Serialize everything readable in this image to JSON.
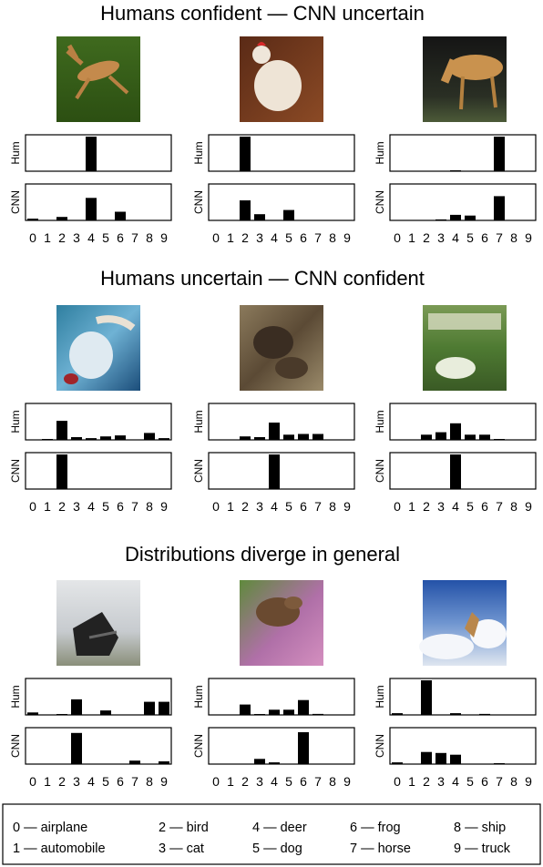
{
  "chart_data": {
    "type": "bar",
    "categories": [
      "0",
      "1",
      "2",
      "3",
      "4",
      "5",
      "6",
      "7",
      "8",
      "9"
    ],
    "ylabels": {
      "human": "Hum",
      "cnn": "CNN"
    },
    "ylim": [
      0,
      1
    ],
    "sections": [
      {
        "title": "Humans confident — CNN uncertain",
        "examples": [
          {
            "image": "deer-jumping-on-grass",
            "human": [
              0,
              0,
              0,
              0,
              1,
              0,
              0,
              0,
              0,
              0
            ],
            "cnn": [
              0.05,
              0,
              0.1,
              0,
              0.65,
              0,
              0.25,
              0,
              0,
              0
            ]
          },
          {
            "image": "white-rooster",
            "human": [
              0,
              0,
              1,
              0,
              0,
              0,
              0,
              0,
              0,
              0
            ],
            "cnn": [
              0,
              0,
              0.58,
              0.18,
              0,
              0.3,
              0,
              0,
              0,
              0
            ]
          },
          {
            "image": "tan-horse-in-dark",
            "human": [
              0,
              0,
              0,
              0,
              0.02,
              0,
              0,
              1,
              0,
              0
            ],
            "cnn": [
              0,
              0,
              0,
              0.03,
              0.16,
              0.14,
              0,
              0.7,
              0,
              0
            ]
          }
        ]
      },
      {
        "title": "Humans uncertain — CNN confident",
        "examples": [
          {
            "image": "blurry-blue-bird",
            "human": [
              0,
              0.02,
              0.55,
              0.08,
              0.05,
              0.1,
              0.13,
              0,
              0.2,
              0.05
            ],
            "cnn": [
              0,
              0,
              1,
              0,
              0,
              0,
              0,
              0,
              0,
              0
            ]
          },
          {
            "image": "camouflaged-brown-animal",
            "human": [
              0,
              0,
              0.1,
              0.08,
              0.5,
              0.15,
              0.17,
              0.17,
              0,
              0
            ],
            "cnn": [
              0,
              0,
              0,
              0,
              1,
              0,
              0,
              0,
              0,
              0
            ]
          },
          {
            "image": "green-landscape-blur",
            "human": [
              0,
              0,
              0.15,
              0.22,
              0.48,
              0.15,
              0.15,
              0.02,
              0,
              0
            ],
            "cnn": [
              0,
              0,
              0,
              0,
              1,
              0,
              0,
              0,
              0,
              0
            ]
          }
        ]
      },
      {
        "title": "Distributions diverge in general",
        "examples": [
          {
            "image": "dark-animal-in-snow",
            "human": [
              0.07,
              0,
              0.02,
              0.45,
              0,
              0.13,
              0,
              0,
              0.38,
              0.38
            ],
            "cnn": [
              0,
              0,
              0,
              0.9,
              0,
              0,
              0,
              0.1,
              0,
              0.08
            ]
          },
          {
            "image": "dog-head-purple-background",
            "human": [
              0,
              0,
              0.3,
              0.02,
              0.15,
              0.15,
              0.43,
              0.03,
              0,
              0
            ],
            "cnn": [
              0,
              0,
              0,
              0.15,
              0.05,
              0,
              0.92,
              0,
              0,
              0
            ]
          },
          {
            "image": "animal-against-sky",
            "human": [
              0.05,
              0,
              1,
              0,
              0.05,
              0,
              0.03,
              0,
              0,
              0
            ],
            "cnn": [
              0.05,
              0,
              0.35,
              0.32,
              0.27,
              0,
              0,
              0.01,
              0,
              0
            ]
          }
        ]
      }
    ],
    "legend": [
      {
        "key": "0",
        "label": "airplane"
      },
      {
        "key": "1",
        "label": "automobile"
      },
      {
        "key": "2",
        "label": "bird"
      },
      {
        "key": "3",
        "label": "cat"
      },
      {
        "key": "4",
        "label": "deer"
      },
      {
        "key": "5",
        "label": "dog"
      },
      {
        "key": "6",
        "label": "frog"
      },
      {
        "key": "7",
        "label": "horse"
      },
      {
        "key": "8",
        "label": "ship"
      },
      {
        "key": "9",
        "label": "truck"
      }
    ],
    "legend_separator": "—"
  }
}
